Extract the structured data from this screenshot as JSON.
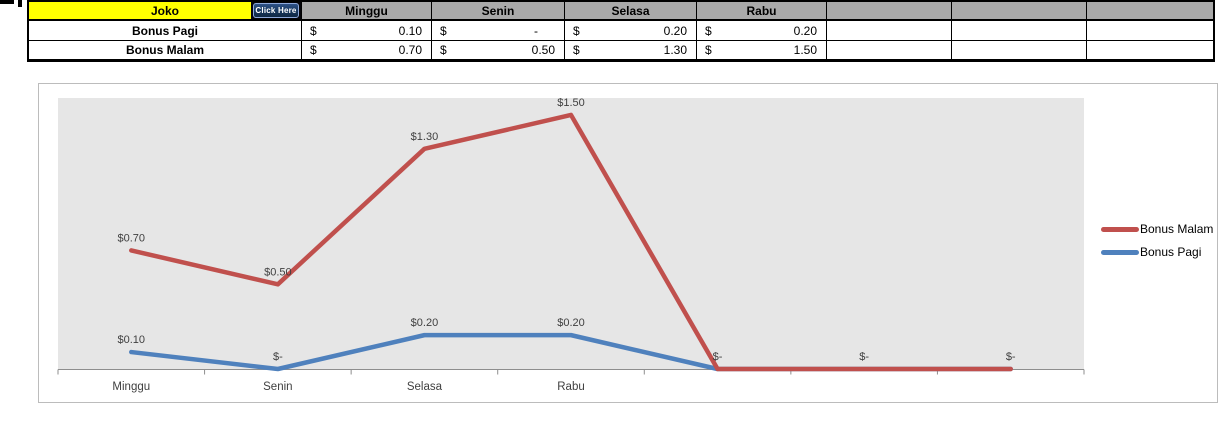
{
  "table": {
    "name_header": "Joko",
    "button_label": "Click Here",
    "day_headers": [
      "Minggu",
      "Senin",
      "Selasa",
      "Rabu",
      "",
      "",
      ""
    ],
    "rows": [
      {
        "label": "Bonus Pagi",
        "currency": [
          "$",
          "$",
          "$",
          "$",
          "",
          "",
          ""
        ],
        "values": [
          "0.10",
          "-",
          "0.20",
          "0.20",
          "",
          "",
          ""
        ]
      },
      {
        "label": "Bonus Malam",
        "currency": [
          "$",
          "$",
          "$",
          "$",
          "",
          "",
          ""
        ],
        "values": [
          "0.70",
          "0.50",
          "1.30",
          "1.50",
          "",
          "",
          ""
        ]
      }
    ],
    "header_fill": "#a9a9a9",
    "name_fill": "#ffff00"
  },
  "chart_data": {
    "type": "line",
    "categories": [
      "Minggu",
      "Senin",
      "Selasa",
      "Rabu",
      "",
      "",
      ""
    ],
    "series": [
      {
        "name": "Bonus Pagi",
        "color": "#4f81bd",
        "values": [
          0.1,
          0,
          0.2,
          0.2,
          0,
          0,
          0
        ],
        "labels": [
          "$0.10",
          "$-",
          "$0.20",
          "$0.20",
          "",
          "",
          ""
        ]
      },
      {
        "name": "Bonus Malam",
        "color": "#c0504d",
        "values": [
          0.7,
          0.5,
          1.3,
          1.5,
          0,
          0,
          0
        ],
        "labels": [
          "$0.70",
          "$0.50",
          "$1.30",
          "$1.50",
          "$-",
          "$-",
          "$-"
        ]
      }
    ],
    "ylim": [
      0,
      1.6
    ],
    "grid": false,
    "plot_bg": "#e6e6e6",
    "axis_color": "#8e8e8e",
    "label_color": "#3f3f3f",
    "legend_position": "right",
    "legend": [
      {
        "label": "Bonus Malam",
        "color": "#c0504d"
      },
      {
        "label": "Bonus Pagi",
        "color": "#4f81bd"
      }
    ]
  }
}
